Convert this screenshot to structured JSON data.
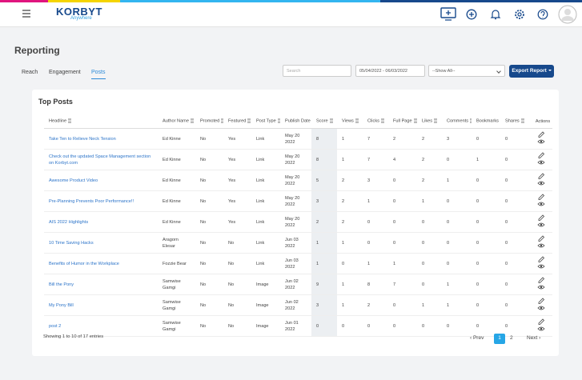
{
  "header": {
    "logo": "KORBYT",
    "logo_sub": "Anywhere"
  },
  "page": {
    "title": "Reporting",
    "tabs": [
      "Reach",
      "Engagement",
      "Posts"
    ],
    "active_tab": 2,
    "search_placeholder": "Search",
    "date_range": "05/04/2022 - 06/03/2022",
    "filter": "--Show All--",
    "export_button": "Export Report"
  },
  "table": {
    "title": "Top Posts",
    "columns": [
      "Headline",
      "Author Name",
      "Promoted",
      "Featured",
      "Post Type",
      "Publish Date",
      "Score",
      "Views",
      "Clicks",
      "Full Page",
      "Likes",
      "Comments",
      "Bookmarks",
      "Shares",
      "Actions"
    ],
    "rows": [
      [
        "Take Ten to Relieve Neck Tension",
        "Ed Kinne",
        "No",
        "Yes",
        "Link",
        "May 20 2022",
        8,
        1,
        7,
        2,
        2,
        3,
        0,
        0
      ],
      [
        "Check out the updated Space Management section on Korbyt.com",
        "Ed Kinne",
        "No",
        "Yes",
        "Link",
        "May 20 2022",
        8,
        1,
        7,
        4,
        2,
        0,
        1,
        0
      ],
      [
        "Awesome Product Video",
        "Ed Kinne",
        "No",
        "Yes",
        "Link",
        "May 20 2022",
        5,
        2,
        3,
        0,
        2,
        1,
        0,
        0
      ],
      [
        "Pre-Planning Prevents Poor Performance!!",
        "Ed Kinne",
        "No",
        "Yes",
        "Link",
        "May 20 2022",
        3,
        2,
        1,
        0,
        1,
        0,
        0,
        0
      ],
      [
        "AIS 2022 Highlights",
        "Ed Kinne",
        "No",
        "Yes",
        "Link",
        "May 20 2022",
        2,
        2,
        0,
        0,
        0,
        0,
        0,
        0
      ],
      [
        "10 Time Saving Hacks",
        "Aragorn Elesar",
        "No",
        "No",
        "Link",
        "Jun 03 2022",
        1,
        1,
        0,
        0,
        0,
        0,
        0,
        0
      ],
      [
        "Benefits of Humor in the Workplace",
        "Fozzie Bear",
        "No",
        "No",
        "Link",
        "Jun 03 2022",
        1,
        0,
        1,
        1,
        0,
        0,
        0,
        0
      ],
      [
        "Bill the Pony",
        "Samwise Gamgi",
        "No",
        "No",
        "Image",
        "Jun 02 2022",
        9,
        1,
        8,
        7,
        0,
        1,
        0,
        0
      ],
      [
        "My Pony Bill",
        "Samwise Gamgi",
        "No",
        "No",
        "Image",
        "Jun 02 2022",
        3,
        1,
        2,
        0,
        1,
        1,
        0,
        0
      ],
      [
        "post 2",
        "Samwise Gamgi",
        "No",
        "No",
        "Image",
        "Jun 01 2022",
        0,
        0,
        0,
        0,
        0,
        0,
        0,
        0
      ]
    ],
    "footer": "Showing 1 to 10 of 17 entries",
    "pagination": {
      "prev": "‹ Prev",
      "pages": [
        1,
        2
      ],
      "current": 0,
      "next": "Next ›"
    }
  }
}
